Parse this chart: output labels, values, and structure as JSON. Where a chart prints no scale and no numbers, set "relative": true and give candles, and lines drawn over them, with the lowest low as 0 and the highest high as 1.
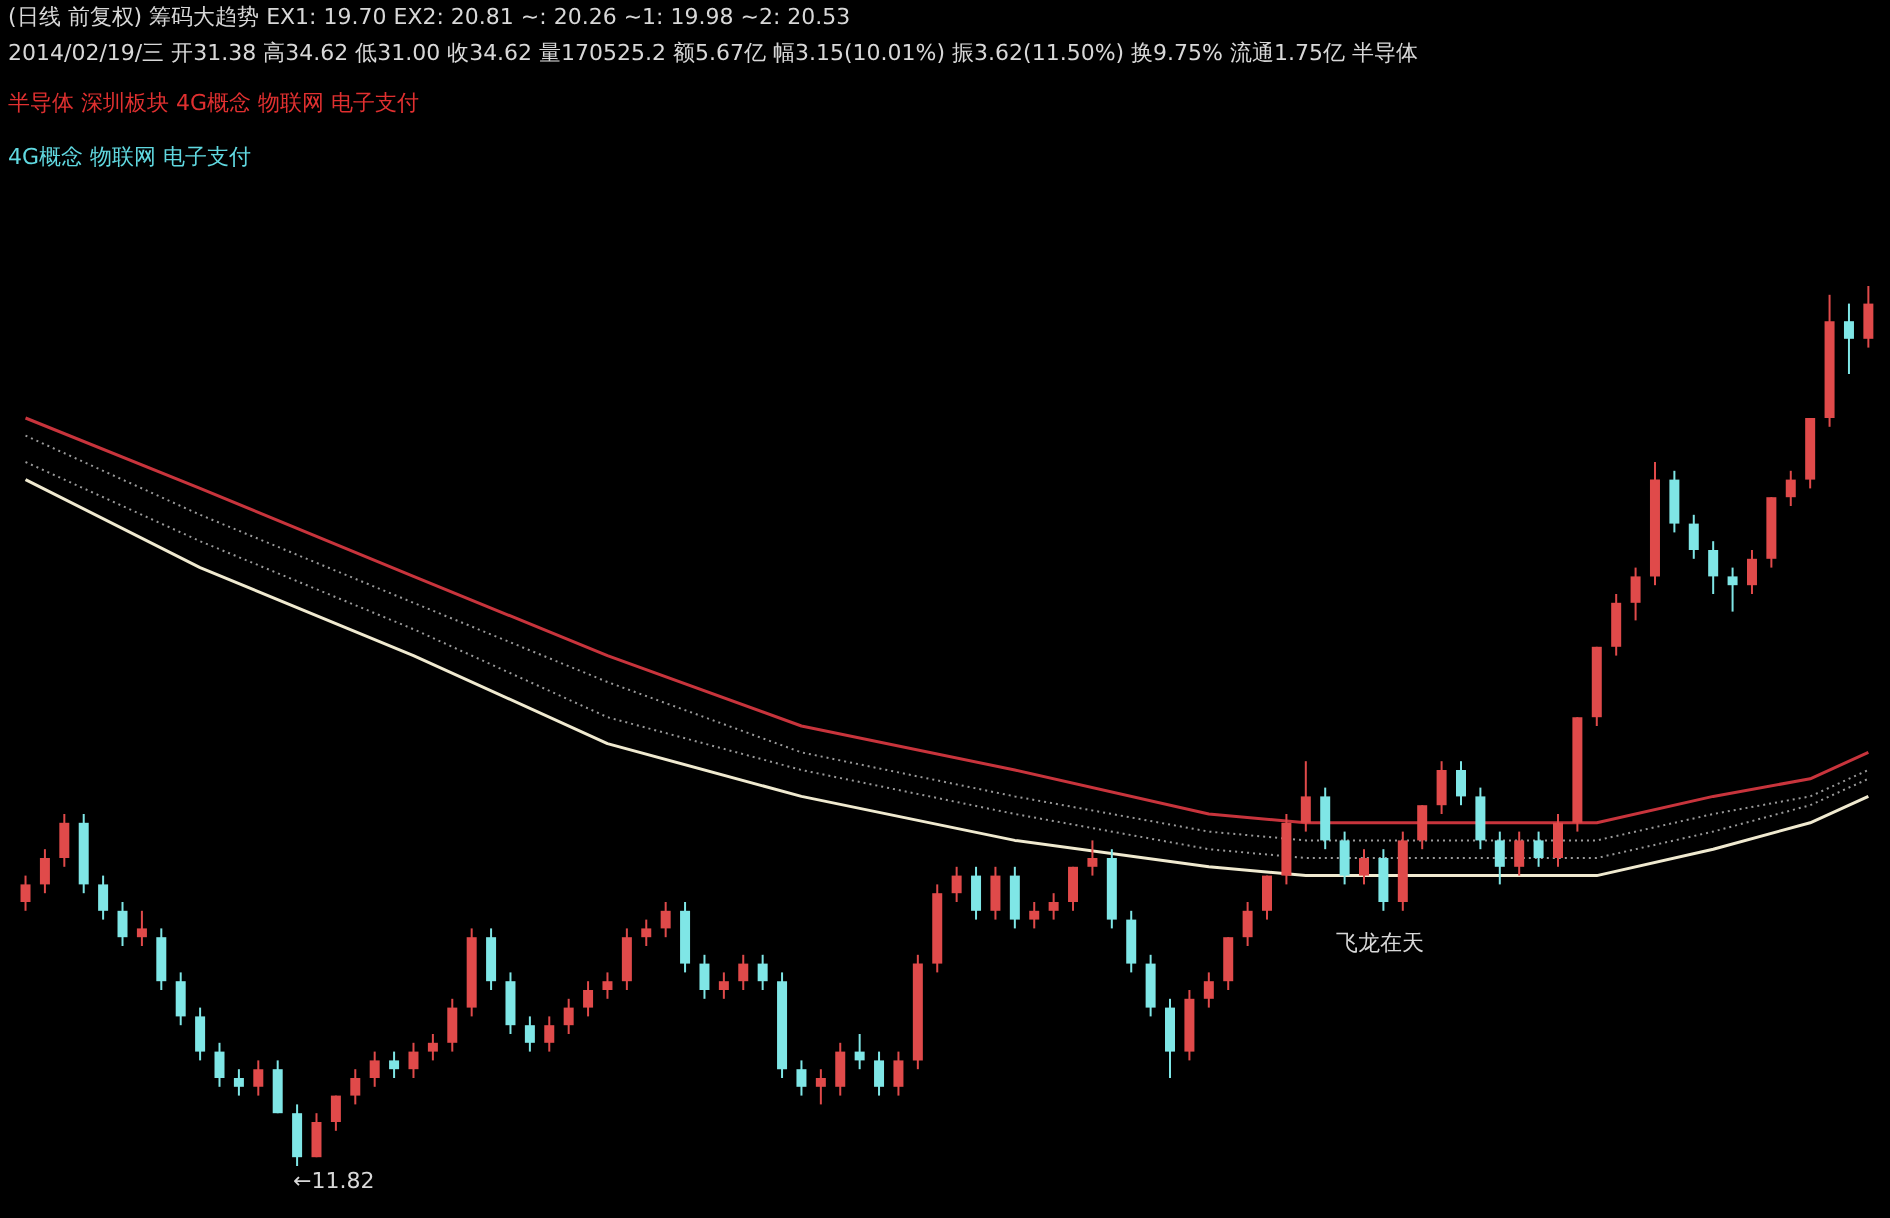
{
  "chart_data": {
    "type": "candlestick",
    "relative": true,
    "title": "(日线 前复权) 筹码大趋势  EX1: 19.70  EX2: 20.81  ~: 20.26  ~1: 19.98  ~2: 20.53",
    "subtitle": "2014/02/19/三 开31.38 高34.62 低31.00 收34.62 量170525.2 额5.67亿 幅3.15(10.01%) 振3.62(11.50%) 换9.75% 流通1.75亿 半导体",
    "annotations": [
      "半导体 深圳板块 4G概念 物联网 电子支付",
      "4G概念 物联网 电子支付",
      "←11.82",
      "飞龙在天"
    ],
    "categories": [
      null,
      null,
      null,
      null,
      null,
      null,
      null,
      null,
      null,
      null,
      null,
      null,
      null,
      null,
      null,
      null,
      null,
      null,
      null,
      null,
      null,
      null,
      null,
      null,
      null,
      null,
      null,
      null,
      null,
      null,
      null,
      null,
      null,
      null,
      null,
      null,
      null,
      null,
      null,
      null,
      null,
      null,
      null,
      null,
      null,
      null,
      null,
      null,
      null,
      null,
      null,
      null,
      null,
      null,
      null,
      null,
      null,
      null,
      null,
      null,
      null,
      null,
      null,
      null,
      null,
      null,
      null,
      null,
      null,
      null,
      null,
      null,
      null,
      null,
      null,
      null,
      null,
      null,
      null,
      null,
      null,
      null,
      null,
      null,
      null,
      null,
      null,
      null,
      null,
      null,
      null,
      null,
      null,
      null,
      null,
      null
    ],
    "ohlc": [
      [
        0.3,
        0.33,
        0.29,
        0.32
      ],
      [
        0.32,
        0.36,
        0.31,
        0.35
      ],
      [
        0.35,
        0.4,
        0.34,
        0.39
      ],
      [
        0.39,
        0.4,
        0.31,
        0.32
      ],
      [
        0.32,
        0.33,
        0.28,
        0.29
      ],
      [
        0.29,
        0.3,
        0.25,
        0.26
      ],
      [
        0.26,
        0.29,
        0.25,
        0.27
      ],
      [
        0.26,
        0.27,
        0.2,
        0.21
      ],
      [
        0.21,
        0.22,
        0.16,
        0.17
      ],
      [
        0.17,
        0.18,
        0.12,
        0.13
      ],
      [
        0.13,
        0.14,
        0.09,
        0.1
      ],
      [
        0.1,
        0.11,
        0.08,
        0.09
      ],
      [
        0.09,
        0.12,
        0.08,
        0.11
      ],
      [
        0.11,
        0.12,
        0.06,
        0.06
      ],
      [
        0.06,
        0.07,
        0.0,
        0.01
      ],
      [
        0.01,
        0.06,
        0.01,
        0.05
      ],
      [
        0.05,
        0.08,
        0.04,
        0.08
      ],
      [
        0.08,
        0.11,
        0.07,
        0.1
      ],
      [
        0.1,
        0.13,
        0.09,
        0.12
      ],
      [
        0.12,
        0.13,
        0.1,
        0.11
      ],
      [
        0.11,
        0.14,
        0.1,
        0.13
      ],
      [
        0.13,
        0.15,
        0.12,
        0.14
      ],
      [
        0.14,
        0.19,
        0.13,
        0.18
      ],
      [
        0.18,
        0.27,
        0.17,
        0.26
      ],
      [
        0.26,
        0.27,
        0.2,
        0.21
      ],
      [
        0.21,
        0.22,
        0.15,
        0.16
      ],
      [
        0.16,
        0.17,
        0.13,
        0.14
      ],
      [
        0.14,
        0.17,
        0.13,
        0.16
      ],
      [
        0.16,
        0.19,
        0.15,
        0.18
      ],
      [
        0.18,
        0.21,
        0.17,
        0.2
      ],
      [
        0.2,
        0.22,
        0.19,
        0.21
      ],
      [
        0.21,
        0.27,
        0.2,
        0.26
      ],
      [
        0.26,
        0.28,
        0.25,
        0.27
      ],
      [
        0.27,
        0.3,
        0.26,
        0.29
      ],
      [
        0.29,
        0.3,
        0.22,
        0.23
      ],
      [
        0.23,
        0.24,
        0.19,
        0.2
      ],
      [
        0.2,
        0.22,
        0.19,
        0.21
      ],
      [
        0.21,
        0.24,
        0.2,
        0.23
      ],
      [
        0.23,
        0.24,
        0.2,
        0.21
      ],
      [
        0.21,
        0.22,
        0.1,
        0.11
      ],
      [
        0.11,
        0.12,
        0.08,
        0.09
      ],
      [
        0.09,
        0.11,
        0.07,
        0.1
      ],
      [
        0.09,
        0.14,
        0.08,
        0.13
      ],
      [
        0.13,
        0.15,
        0.11,
        0.12
      ],
      [
        0.12,
        0.13,
        0.08,
        0.09
      ],
      [
        0.09,
        0.13,
        0.08,
        0.12
      ],
      [
        0.12,
        0.24,
        0.11,
        0.23
      ],
      [
        0.23,
        0.32,
        0.22,
        0.31
      ],
      [
        0.31,
        0.34,
        0.3,
        0.33
      ],
      [
        0.33,
        0.34,
        0.28,
        0.29
      ],
      [
        0.29,
        0.34,
        0.28,
        0.33
      ],
      [
        0.33,
        0.34,
        0.27,
        0.28
      ],
      [
        0.28,
        0.3,
        0.27,
        0.29
      ],
      [
        0.29,
        0.31,
        0.28,
        0.3
      ],
      [
        0.3,
        0.34,
        0.29,
        0.34
      ],
      [
        0.34,
        0.37,
        0.33,
        0.35
      ],
      [
        0.35,
        0.36,
        0.27,
        0.28
      ],
      [
        0.28,
        0.29,
        0.22,
        0.23
      ],
      [
        0.23,
        0.24,
        0.17,
        0.18
      ],
      [
        0.18,
        0.19,
        0.1,
        0.13
      ],
      [
        0.13,
        0.2,
        0.12,
        0.19
      ],
      [
        0.19,
        0.22,
        0.18,
        0.21
      ],
      [
        0.21,
        0.26,
        0.2,
        0.26
      ],
      [
        0.26,
        0.3,
        0.25,
        0.29
      ],
      [
        0.29,
        0.33,
        0.28,
        0.33
      ],
      [
        0.33,
        0.4,
        0.32,
        0.39
      ],
      [
        0.39,
        0.46,
        0.38,
        0.42
      ],
      [
        0.42,
        0.43,
        0.36,
        0.37
      ],
      [
        0.37,
        0.38,
        0.32,
        0.33
      ],
      [
        0.33,
        0.36,
        0.32,
        0.35
      ],
      [
        0.35,
        0.36,
        0.29,
        0.3
      ],
      [
        0.3,
        0.38,
        0.29,
        0.37
      ],
      [
        0.37,
        0.41,
        0.36,
        0.41
      ],
      [
        0.41,
        0.46,
        0.4,
        0.45
      ],
      [
        0.45,
        0.46,
        0.41,
        0.42
      ],
      [
        0.42,
        0.43,
        0.36,
        0.37
      ],
      [
        0.37,
        0.38,
        0.32,
        0.34
      ],
      [
        0.34,
        0.38,
        0.33,
        0.37
      ],
      [
        0.37,
        0.38,
        0.34,
        0.35
      ],
      [
        0.35,
        0.4,
        0.34,
        0.39
      ],
      [
        0.39,
        0.51,
        0.38,
        0.51
      ],
      [
        0.51,
        0.59,
        0.5,
        0.59
      ],
      [
        0.59,
        0.65,
        0.58,
        0.64
      ],
      [
        0.64,
        0.68,
        0.62,
        0.67
      ],
      [
        0.67,
        0.8,
        0.66,
        0.78
      ],
      [
        0.78,
        0.79,
        0.72,
        0.73
      ],
      [
        0.73,
        0.74,
        0.69,
        0.7
      ],
      [
        0.7,
        0.71,
        0.65,
        0.67
      ],
      [
        0.67,
        0.68,
        0.63,
        0.66
      ],
      [
        0.66,
        0.7,
        0.65,
        0.69
      ],
      [
        0.69,
        0.76,
        0.68,
        0.76
      ],
      [
        0.76,
        0.79,
        0.75,
        0.78
      ],
      [
        0.78,
        0.85,
        0.77,
        0.85
      ],
      [
        0.85,
        0.99,
        0.84,
        0.96
      ],
      [
        0.96,
        0.98,
        0.9,
        0.94
      ],
      [
        0.94,
        1.0,
        0.93,
        0.98
      ]
    ],
    "colors": [
      "#e04a4a",
      "#e04a4a",
      "#e04a4a",
      "#7fe6e6",
      "#7fe6e6",
      "#7fe6e6",
      "#e04a4a",
      "#7fe6e6",
      "#7fe6e6",
      "#7fe6e6",
      "#7fe6e6",
      "#7fe6e6",
      "#e04a4a",
      "#7fe6e6",
      "#7fe6e6",
      "#e04a4a",
      "#e04a4a",
      "#e04a4a",
      "#e04a4a",
      "#7fe6e6",
      "#e04a4a",
      "#e04a4a",
      "#e04a4a",
      "#e04a4a",
      "#7fe6e6",
      "#7fe6e6",
      "#7fe6e6",
      "#e04a4a",
      "#e04a4a",
      "#e04a4a",
      "#e04a4a",
      "#e04a4a",
      "#e04a4a",
      "#e04a4a",
      "#7fe6e6",
      "#7fe6e6",
      "#e04a4a",
      "#e04a4a",
      "#7fe6e6",
      "#7fe6e6",
      "#7fe6e6",
      "#e04a4a",
      "#e04a4a",
      "#7fe6e6",
      "#7fe6e6",
      "#e04a4a",
      "#e04a4a",
      "#e04a4a",
      "#e04a4a",
      "#7fe6e6",
      "#e04a4a",
      "#7fe6e6",
      "#e04a4a",
      "#e04a4a",
      "#e04a4a",
      "#e04a4a",
      "#7fe6e6",
      "#7fe6e6",
      "#7fe6e6",
      "#7fe6e6",
      "#e04a4a",
      "#e04a4a",
      "#e04a4a",
      "#e04a4a",
      "#e04a4a",
      "#e04a4a",
      "#e04a4a",
      "#7fe6e6",
      "#7fe6e6",
      "#e04a4a",
      "#7fe6e6",
      "#e04a4a",
      "#e04a4a",
      "#e04a4a",
      "#7fe6e6",
      "#7fe6e6",
      "#7fe6e6",
      "#e04a4a",
      "#7fe6e6",
      "#e04a4a",
      "#e04a4a",
      "#e04a4a",
      "#e04a4a",
      "#e04a4a",
      "#e04a4a",
      "#7fe6e6",
      "#7fe6e6",
      "#7fe6e6",
      "#7fe6e6",
      "#e04a4a",
      "#e04a4a",
      "#e04a4a",
      "#e04a4a",
      "#e04a4a",
      "#7fe6e6",
      "#e04a4a"
    ],
    "series": [
      {
        "type": "line",
        "color": "#c8343c",
        "line_style": "solid",
        "values": [
          0.85,
          null,
          null,
          null,
          null,
          null,
          null,
          null,
          null,
          0.77,
          null,
          null,
          null,
          null,
          null,
          null,
          null,
          null,
          null,
          null,
          0.67,
          null,
          null,
          null,
          null,
          null,
          null,
          null,
          null,
          null,
          0.58,
          null,
          null,
          null,
          null,
          null,
          null,
          null,
          null,
          null,
          0.5,
          null,
          null,
          null,
          null,
          null,
          null,
          null,
          null,
          null,
          null,
          0.45,
          null,
          null,
          null,
          null,
          null,
          null,
          null,
          null,
          null,
          0.4,
          null,
          null,
          null,
          null,
          0.39,
          null,
          null,
          null,
          null,
          0.39,
          null,
          null,
          null,
          null,
          null,
          null,
          null,
          null,
          null,
          0.39,
          null,
          null,
          null,
          null,
          null,
          0.42,
          null,
          null,
          null,
          null,
          0.44,
          null,
          null,
          0.47
        ]
      },
      {
        "type": "line",
        "color": "#9a9a9a",
        "line_style": "dotted",
        "values": [
          0.83,
          null,
          null,
          null,
          null,
          null,
          null,
          null,
          null,
          0.74,
          null,
          null,
          null,
          null,
          null,
          null,
          null,
          null,
          null,
          null,
          0.64,
          null,
          null,
          null,
          null,
          null,
          null,
          null,
          null,
          null,
          0.55,
          null,
          null,
          null,
          null,
          null,
          null,
          null,
          null,
          null,
          0.47,
          null,
          null,
          null,
          null,
          null,
          null,
          null,
          null,
          null,
          null,
          0.42,
          null,
          null,
          null,
          null,
          null,
          null,
          null,
          null,
          null,
          0.38,
          null,
          null,
          null,
          null,
          0.37,
          null,
          null,
          null,
          null,
          0.37,
          null,
          null,
          null,
          null,
          null,
          null,
          null,
          null,
          null,
          0.37,
          null,
          null,
          null,
          null,
          null,
          0.4,
          null,
          null,
          null,
          null,
          0.42,
          null,
          null,
          0.45
        ]
      },
      {
        "type": "line",
        "color": "#9a9a9a",
        "line_style": "dotted",
        "values": [
          0.8,
          null,
          null,
          null,
          null,
          null,
          null,
          null,
          null,
          0.71,
          null,
          null,
          null,
          null,
          null,
          null,
          null,
          null,
          null,
          null,
          0.61,
          null,
          null,
          null,
          null,
          null,
          null,
          null,
          null,
          null,
          0.51,
          null,
          null,
          null,
          null,
          null,
          null,
          null,
          null,
          null,
          0.45,
          null,
          null,
          null,
          null,
          null,
          null,
          null,
          null,
          null,
          null,
          0.4,
          null,
          null,
          null,
          null,
          null,
          null,
          null,
          null,
          null,
          0.36,
          null,
          null,
          null,
          null,
          0.35,
          null,
          null,
          null,
          null,
          0.35,
          null,
          null,
          null,
          null,
          null,
          null,
          null,
          null,
          null,
          0.35,
          null,
          null,
          null,
          null,
          null,
          0.38,
          null,
          null,
          null,
          null,
          0.41,
          null,
          null,
          0.44
        ]
      },
      {
        "type": "line",
        "color": "#f0ead0",
        "line_style": "solid",
        "values": [
          0.78,
          null,
          null,
          null,
          null,
          null,
          null,
          null,
          null,
          0.68,
          null,
          null,
          null,
          null,
          null,
          null,
          null,
          null,
          null,
          null,
          0.58,
          null,
          null,
          null,
          null,
          null,
          null,
          null,
          null,
          null,
          0.48,
          null,
          null,
          null,
          null,
          null,
          null,
          null,
          null,
          null,
          0.42,
          null,
          null,
          null,
          null,
          null,
          null,
          null,
          null,
          null,
          null,
          0.37,
          null,
          null,
          null,
          null,
          null,
          null,
          null,
          null,
          null,
          0.34,
          null,
          null,
          null,
          null,
          0.33,
          null,
          null,
          null,
          null,
          0.33,
          null,
          null,
          null,
          null,
          null,
          null,
          null,
          null,
          null,
          0.33,
          null,
          null,
          null,
          null,
          null,
          0.36,
          null,
          null,
          null,
          null,
          0.39,
          null,
          null,
          0.42
        ]
      }
    ]
  }
}
